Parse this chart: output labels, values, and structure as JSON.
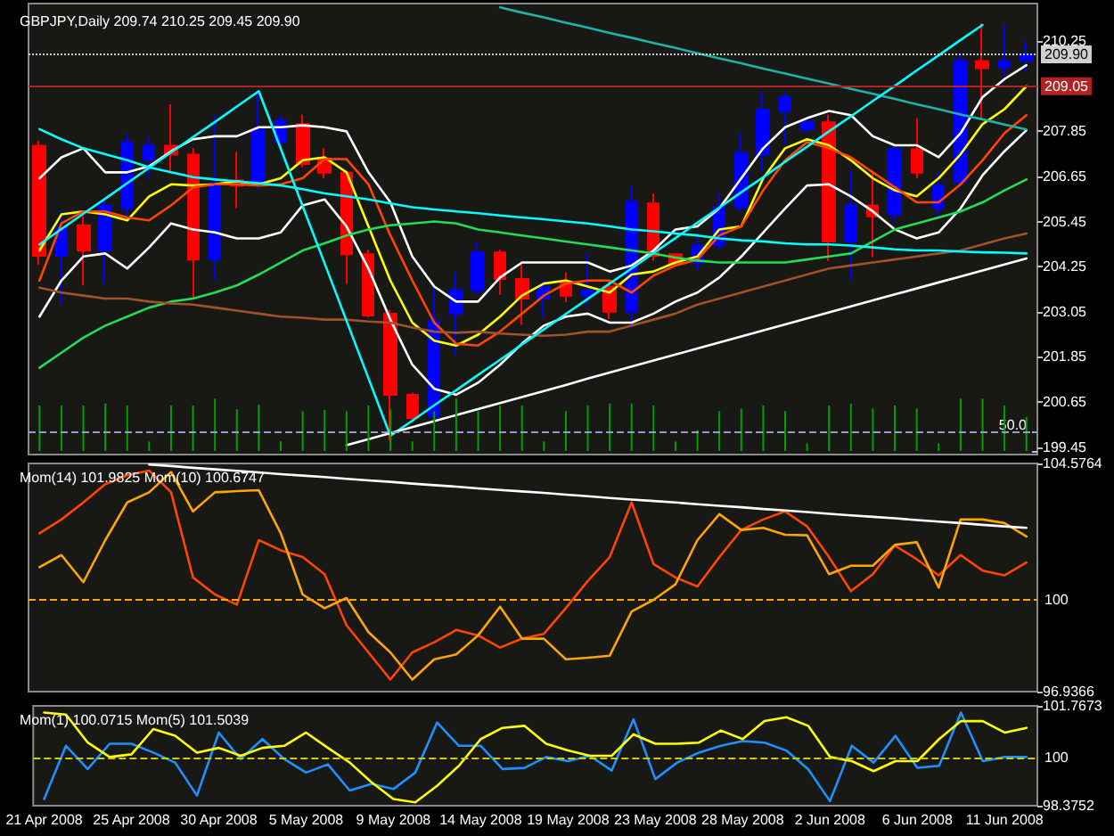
{
  "chart_data": [
    {
      "type": "candlestick",
      "title": "GBPJPY,Daily 209.74 210.25 209.45 209.90",
      "categories": [
        null,
        null,
        null,
        null,
        null,
        null,
        null,
        null,
        null,
        null,
        null,
        null,
        null,
        null,
        null,
        null,
        null,
        null,
        null,
        null,
        null,
        null,
        null,
        null,
        null,
        null,
        null,
        null,
        null,
        null,
        null,
        null,
        null,
        null,
        null,
        null,
        null,
        null,
        null,
        null,
        null,
        null,
        null,
        null,
        null,
        null
      ],
      "ohlc": [
        [
          207.47,
          207.6,
          204.3,
          204.54
        ],
        [
          204.54,
          205.74,
          203.24,
          205.3
        ],
        [
          205.35,
          205.6,
          203.75,
          204.68
        ],
        [
          204.68,
          206.1,
          203.8,
          205.88
        ],
        [
          205.8,
          207.8,
          205.6,
          207.56
        ],
        [
          207.1,
          207.7,
          206.6,
          207.47
        ],
        [
          207.47,
          208.57,
          206.75,
          207.23
        ],
        [
          207.23,
          207.4,
          203.4,
          204.44
        ],
        [
          204.44,
          208.3,
          203.9,
          206.46
        ],
        [
          206.55,
          207.3,
          205.8,
          206.4
        ],
        [
          206.5,
          208.92,
          206.3,
          207.9
        ],
        [
          207.56,
          208.3,
          207.45,
          208.13
        ],
        [
          208.04,
          208.3,
          206.9,
          206.98
        ],
        [
          207.13,
          207.4,
          206.6,
          206.75
        ],
        [
          206.75,
          206.8,
          203.8,
          204.58
        ],
        [
          204.58,
          204.7,
          202.9,
          202.95
        ],
        [
          203.0,
          203.1,
          199.62,
          200.84
        ],
        [
          200.84,
          200.9,
          200.1,
          200.22
        ],
        [
          200.26,
          203.72,
          200.2,
          202.8
        ],
        [
          203.0,
          204.1,
          201.9,
          203.62
        ],
        [
          203.62,
          204.9,
          203.5,
          204.63
        ],
        [
          204.63,
          204.7,
          203.5,
          203.92
        ],
        [
          203.92,
          204.3,
          202.7,
          203.4
        ],
        [
          203.4,
          203.9,
          202.9,
          203.72
        ],
        [
          203.85,
          204.1,
          203.3,
          203.48
        ],
        [
          203.48,
          204.6,
          203.2,
          203.62
        ],
        [
          203.72,
          203.9,
          202.85,
          203.05
        ],
        [
          203.05,
          206.4,
          202.6,
          205.98
        ],
        [
          205.93,
          206.2,
          204.4,
          204.54
        ],
        [
          204.58,
          204.6,
          204.25,
          204.34
        ],
        [
          204.34,
          205.0,
          204.15,
          204.82
        ],
        [
          204.82,
          206.2,
          204.7,
          205.83
        ],
        [
          205.83,
          207.8,
          205.7,
          207.27
        ],
        [
          207.23,
          208.9,
          206.8,
          208.43
        ],
        [
          208.38,
          208.9,
          207.5,
          208.76
        ],
        [
          207.9,
          208.2,
          207.8,
          208.1
        ],
        [
          208.09,
          208.3,
          204.4,
          204.92
        ],
        [
          204.92,
          206.8,
          203.9,
          205.88
        ],
        [
          205.88,
          206.8,
          204.5,
          205.59
        ],
        [
          205.64,
          207.5,
          205.4,
          207.37
        ],
        [
          207.37,
          208.2,
          206.6,
          206.75
        ],
        [
          205.8,
          206.8,
          205.6,
          206.41
        ],
        [
          206.5,
          209.96,
          206.3,
          209.72
        ],
        [
          209.72,
          210.73,
          208.2,
          209.53
        ],
        [
          209.55,
          210.7,
          209.3,
          209.72
        ],
        [
          209.74,
          210.25,
          209.45,
          209.9
        ]
      ],
      "colors": [
        "#ff0000",
        "#0000ff",
        "#ff0000",
        "#0000ff",
        "#0000ff",
        "#0000ff",
        "#ff0000",
        "#ff0000",
        "#0000ff",
        "#ff0000",
        "#0000ff",
        "#0000ff",
        "#ff0000",
        "#ff0000",
        "#ff0000",
        "#ff0000",
        "#ff0000",
        "#ff0000",
        "#0000ff",
        "#0000ff",
        "#0000ff",
        "#ff0000",
        "#ff0000",
        "#0000ff",
        "#ff0000",
        "#0000ff",
        "#ff0000",
        "#0000ff",
        "#ff0000",
        "#ff0000",
        "#0000ff",
        "#0000ff",
        "#0000ff",
        "#0000ff",
        "#0000ff",
        "#0000ff",
        "#ff0000",
        "#0000ff",
        "#ff0000",
        "#0000ff",
        "#ff0000",
        "#0000ff",
        "#0000ff",
        "#ff0000",
        "#0000ff",
        "#0000ff"
      ],
      "series": [
        {
          "type": "line",
          "color": "#ffffff",
          "values": [
            206.6,
            207.16,
            207.4,
            206.76,
            206.76,
            206.92,
            207.32,
            207.64,
            207.72,
            207.72,
            207.96,
            207.96,
            208.01,
            207.96,
            207.85,
            206.76,
            205.96,
            204.52,
            203.72,
            203.32,
            203.32,
            203.96,
            204.36,
            204.36,
            204.36,
            204.36,
            204.12,
            204.28,
            204.68,
            205.24,
            205.32,
            205.8,
            206.6,
            207.4,
            207.96,
            208.2,
            208.39,
            208.28,
            207.72,
            207.48,
            207.48,
            207.16,
            207.8,
            208.76,
            209.24,
            209.61
          ]
        },
        {
          "type": "line",
          "color": "#ffffff",
          "values": [
            202.92,
            203.88,
            204.52,
            204.6,
            204.2,
            204.76,
            205.4,
            205.24,
            205.16,
            205.0,
            205.0,
            205.16,
            205.88,
            206.04,
            205.32,
            204.2,
            202.84,
            201.64,
            201.0,
            200.84,
            201.16,
            201.64,
            202.2,
            202.68,
            202.92,
            203.0,
            202.76,
            202.76,
            203.0,
            203.32,
            203.56,
            203.96,
            204.52,
            205.16,
            205.8,
            206.41,
            206.44,
            206.12,
            205.72,
            205.24,
            205.0,
            205.16,
            205.8,
            206.68,
            207.32,
            207.88
          ]
        },
        {
          "type": "line",
          "color": "#ffff00",
          "values": [
            204.68,
            205.64,
            205.72,
            205.64,
            205.48,
            206.12,
            206.44,
            206.41,
            206.44,
            206.52,
            206.44,
            206.6,
            207.08,
            207.16,
            206.76,
            205.32,
            203.88,
            202.76,
            202.28,
            202.15,
            202.44,
            202.92,
            203.48,
            203.8,
            203.88,
            203.72,
            203.56,
            204.04,
            204.12,
            204.36,
            204.52,
            205.24,
            205.32,
            206.6,
            207.4,
            207.64,
            207.48,
            207.08,
            206.6,
            206.28,
            206.12,
            206.6,
            207.24,
            208.04,
            208.44,
            209.05
          ]
        },
        {
          "type": "line",
          "color": "#ff4500",
          "values": [
            203.88,
            205.4,
            205.72,
            205.72,
            205.56,
            205.48,
            205.88,
            206.36,
            206.44,
            206.44,
            206.41,
            206.44,
            206.6,
            207.11,
            207.11,
            206.44,
            205.08,
            203.88,
            202.76,
            202.2,
            202.15,
            202.52,
            203.0,
            203.48,
            203.8,
            203.88,
            203.88,
            203.56,
            204.01,
            204.28,
            204.44,
            205.08,
            205.32,
            206.28,
            207.08,
            207.56,
            207.4,
            207.16,
            206.76,
            206.36,
            205.96,
            205.96,
            206.44,
            207.08,
            207.8,
            208.28
          ]
        },
        {
          "type": "line",
          "color": "#22dd55",
          "values": [
            201.56,
            201.96,
            202.36,
            202.68,
            202.92,
            203.16,
            203.32,
            203.4,
            203.56,
            203.75,
            204.04,
            204.36,
            204.68,
            204.87,
            205.08,
            205.24,
            205.35,
            205.4,
            205.45,
            205.4,
            205.24,
            205.16,
            205.08,
            205.0,
            204.92,
            204.84,
            204.76,
            204.68,
            204.6,
            204.49,
            204.41,
            204.36,
            204.36,
            204.36,
            204.36,
            204.44,
            204.52,
            204.6,
            204.92,
            205.24,
            205.4,
            205.56,
            205.72,
            205.96,
            206.28,
            206.57
          ]
        },
        {
          "type": "line",
          "color": "#a0522d",
          "values": [
            203.69,
            203.56,
            203.48,
            203.4,
            203.4,
            203.32,
            203.27,
            203.24,
            203.16,
            203.08,
            203.0,
            202.92,
            202.89,
            202.84,
            202.84,
            202.79,
            202.76,
            202.63,
            202.52,
            202.49,
            202.52,
            202.47,
            202.44,
            202.41,
            202.44,
            202.52,
            202.52,
            202.68,
            202.84,
            203.0,
            203.24,
            203.4,
            203.56,
            203.72,
            203.88,
            204.04,
            204.2,
            204.28,
            204.36,
            204.44,
            204.52,
            204.6,
            204.68,
            204.84,
            205.0,
            205.13
          ]
        },
        {
          "type": "line",
          "color": "#00ffff",
          "values": [
            207.91,
            207.64,
            207.4,
            207.24,
            207.08,
            206.89,
            206.76,
            206.63,
            206.57,
            206.52,
            206.47,
            206.41,
            206.31,
            206.2,
            206.12,
            206.04,
            205.93,
            205.83,
            205.77,
            205.72,
            205.67,
            205.61,
            205.56,
            205.51,
            205.45,
            205.4,
            205.32,
            205.24,
            205.19,
            205.13,
            205.08,
            205.0,
            204.95,
            204.92,
            204.87,
            204.84,
            204.84,
            204.81,
            204.76,
            204.71,
            204.68,
            204.68,
            204.65,
            204.63,
            204.62,
            204.6
          ]
        },
        {
          "type": "line",
          "color": "#20b2aa",
          "values": [
            null,
            null,
            null,
            null,
            null,
            null,
            null,
            null,
            null,
            null,
            null,
            null,
            null,
            null,
            null,
            null,
            null,
            null,
            null,
            null,
            null,
            211.15,
            211.01,
            210.88,
            210.74,
            210.61,
            210.47,
            210.34,
            210.2,
            210.07,
            209.93,
            209.79,
            209.66,
            209.52,
            209.39,
            209.25,
            209.12,
            208.98,
            208.85,
            208.71,
            208.57,
            208.44,
            208.3,
            208.17,
            208.03,
            207.9
          ]
        },
        {
          "type": "line",
          "color": "#00ffff",
          "values": [
            204.84,
            205.25,
            205.66,
            206.06,
            206.47,
            206.88,
            207.29,
            207.7,
            208.1,
            208.51,
            208.92,
            207.39,
            205.86,
            204.34,
            202.81,
            201.28,
            199.75,
            200.15,
            200.56,
            200.96,
            201.37,
            201.77,
            202.18,
            202.58,
            202.99,
            203.39,
            203.8,
            204.2,
            204.61,
            205.01,
            205.42,
            205.82,
            206.23,
            206.63,
            207.04,
            207.44,
            207.85,
            208.25,
            208.66,
            209.06,
            209.47,
            209.87,
            210.28,
            210.68,
            null,
            null
          ]
        },
        {
          "type": "line",
          "color": "#ffffff",
          "values": [
            null,
            null,
            null,
            null,
            null,
            null,
            null,
            null,
            null,
            null,
            null,
            null,
            null,
            null,
            199.5,
            199.66,
            199.82,
            199.98,
            200.14,
            200.3,
            200.46,
            200.62,
            200.78,
            200.94,
            201.1,
            201.27,
            201.43,
            201.59,
            201.75,
            201.91,
            202.07,
            202.23,
            202.39,
            202.55,
            202.71,
            202.87,
            203.03,
            203.19,
            203.35,
            203.51,
            203.67,
            203.83,
            203.99,
            204.15,
            204.31,
            204.47
          ]
        }
      ],
      "ylim": [
        199.25,
        211.25
      ],
      "yticks": [
        199.45,
        200.65,
        201.85,
        203.05,
        204.25,
        205.45,
        206.65,
        207.85,
        210.25
      ],
      "ref_lines": [
        {
          "axis": "y",
          "value": 209.05,
          "label": "209.05",
          "color": "#b22222"
        },
        {
          "axis": "y",
          "value": 209.9,
          "label": "209.90",
          "color": "#d0d0d0",
          "line_style": "dotted"
        }
      ],
      "tick_labels": "y"
    },
    {
      "type": "bar",
      "color": "#00a000",
      "categories": [
        null,
        null,
        null,
        null,
        null,
        null,
        null,
        null,
        null,
        null,
        null,
        null,
        null,
        null,
        null,
        null,
        null,
        null,
        null,
        null,
        null,
        null,
        null,
        null,
        null,
        null,
        null,
        null,
        null,
        null,
        null,
        null,
        null,
        null,
        null,
        null,
        null,
        null,
        null,
        null,
        null,
        null,
        null,
        null,
        null,
        null
      ],
      "values": [
        120,
        120,
        120,
        125,
        120,
        25,
        120,
        120,
        138,
        110,
        122,
        25,
        105,
        108,
        105,
        120,
        110,
        25,
        105,
        138,
        105,
        120,
        120,
        25,
        105,
        120,
        125,
        125,
        120,
        25,
        55,
        105,
        112,
        120,
        105,
        20,
        120,
        125,
        112,
        120,
        112,
        20,
        138,
        138,
        120,
        90
      ],
      "ylim": [
        0,
        141
      ],
      "yticks": [
        {
          "value": 0,
          "label": null
        },
        {
          "value": 50,
          "label": "50.0"
        }
      ],
      "ref_lines": [
        {
          "axis": "y",
          "value": 50,
          "color": "#9999cc",
          "line_style": "dashed"
        }
      ],
      "tick_labels": "y"
    },
    {
      "type": "line",
      "title": "Mom(14) 101.9825 Mom(10) 100.6747",
      "categories": [
        null,
        null,
        null,
        null,
        null,
        null,
        null,
        null,
        null,
        null,
        null,
        null,
        null,
        null,
        null,
        null,
        null,
        null,
        null,
        null,
        null,
        null,
        null,
        null,
        null,
        null,
        null,
        null,
        null,
        null,
        null,
        null,
        null,
        null,
        null,
        null,
        null,
        null,
        null,
        null,
        null,
        null,
        null,
        null,
        null,
        null
      ],
      "series": [
        {
          "color": "#ff4500",
          "values": [
            102.24,
            102.7,
            103.27,
            103.88,
            104.18,
            104.34,
            103.61,
            100.76,
            100.19,
            99.85,
            102.01,
            101.67,
            101.44,
            100.87,
            99.16,
            98.25,
            97.34,
            98.25,
            98.59,
            99.0,
            98.82,
            98.41,
            98.71,
            98.87,
            99.73,
            100.64,
            101.44,
            103.27,
            101.21,
            100.76,
            100.46,
            101.44,
            102.35,
            102.7,
            102.97,
            102.47,
            101.44,
            100.3,
            100.87,
            101.83,
            101.37,
            100.83,
            101.51,
            100.99,
            100.83,
            101.26
          ]
        },
        {
          "color": "#ffa500",
          "values": [
            101.1,
            101.51,
            100.6,
            102.01,
            103.27,
            103.61,
            104.29,
            102.97,
            103.61,
            103.65,
            103.68,
            102.24,
            100.19,
            99.73,
            100.07,
            98.93,
            98.25,
            97.34,
            98.02,
            98.18,
            98.82,
            99.78,
            98.71,
            98.71,
            98.02,
            98.07,
            98.14,
            99.62,
            100.01,
            100.53,
            102.01,
            102.88,
            102.35,
            102.42,
            102.19,
            102.17,
            100.87,
            101.15,
            101.15,
            101.85,
            101.94,
            100.42,
            102.7,
            102.7,
            102.58,
            102.13
          ]
        },
        {
          "color": "#ffffff",
          "values": [
            null,
            null,
            null,
            null,
            null,
            104.54,
            104.49,
            104.43,
            104.38,
            104.33,
            104.28,
            104.22,
            104.17,
            104.12,
            104.06,
            104.01,
            103.96,
            103.9,
            103.85,
            103.8,
            103.74,
            103.69,
            103.64,
            103.59,
            103.53,
            103.48,
            103.42,
            103.37,
            103.32,
            103.27,
            103.21,
            103.16,
            103.11,
            103.05,
            103.0,
            102.95,
            102.89,
            102.84,
            102.79,
            102.74,
            102.68,
            102.63,
            102.58,
            102.52,
            102.47,
            102.42
          ]
        }
      ],
      "ylim": [
        96.9366,
        104.5764
      ],
      "yticks": [
        96.9366,
        104.5764
      ],
      "ref_lines": [
        {
          "axis": "y",
          "value": 100,
          "label": "100",
          "color": "#ffa500",
          "line_style": "dashed"
        }
      ],
      "tick_labels": "y"
    },
    {
      "type": "line",
      "title": "Mom(1) 100.0715 Mom(5) 101.5039",
      "categories": [
        "21 Apr 2008",
        null,
        null,
        null,
        "25 Apr 2008",
        null,
        null,
        null,
        "30 Apr 2008",
        null,
        null,
        null,
        "5 May 2008",
        null,
        null,
        null,
        "9 May 2008",
        null,
        null,
        null,
        "14 May 2008",
        null,
        null,
        null,
        "19 May 2008",
        null,
        null,
        null,
        "23 May 2008",
        null,
        null,
        null,
        "28 May 2008",
        null,
        null,
        null,
        "2 Jun 2008",
        null,
        null,
        null,
        "6 Jun 2008",
        null,
        null,
        null,
        "11 Jun 2008",
        null
      ],
      "series": [
        {
          "color": "#1e90ff",
          "values": [
            98.6,
            100.41,
            99.62,
            100.48,
            100.48,
            100.18,
            99.84,
            98.72,
            100.86,
            99.96,
            100.64,
            99.96,
            99.5,
            99.78,
            98.89,
            99.12,
            98.94,
            99.5,
            101.2,
            100.41,
            100.41,
            99.62,
            99.66,
            100.03,
            99.89,
            100.07,
            99.57,
            101.31,
            99.28,
            99.84,
            100.18,
            100.41,
            100.57,
            100.52,
            100.25,
            99.62,
            98.53,
            100.41,
            99.84,
            100.75,
            99.66,
            99.73,
            101.54,
            99.89,
            100.03,
            100.03
          ]
        },
        {
          "color": "#ffff00",
          "values": [
            101.54,
            101.47,
            100.52,
            100.03,
            100.12,
            100.98,
            100.75,
            100.18,
            100.34,
            100.07,
            100.34,
            100.41,
            100.86,
            100.34,
            99.84,
            99.17,
            98.6,
            98.49,
            99.05,
            99.73,
            100.64,
            101.02,
            101.09,
            100.48,
            100.25,
            100.07,
            100.07,
            100.8,
            100.48,
            100.48,
            100.52,
            100.93,
            100.64,
            101.25,
            101.38,
            101.09,
            100.03,
            99.89,
            99.55,
            99.89,
            99.89,
            100.64,
            101.25,
            101.25,
            100.86,
            101.02
          ]
        }
      ],
      "ylim": [
        98.3752,
        101.7673
      ],
      "yticks": [
        98.3752,
        101.7673
      ],
      "ref_lines": [
        {
          "axis": "y",
          "value": 100,
          "label": "100",
          "color": "#cccc00",
          "line_style": "dashed"
        }
      ]
    }
  ]
}
